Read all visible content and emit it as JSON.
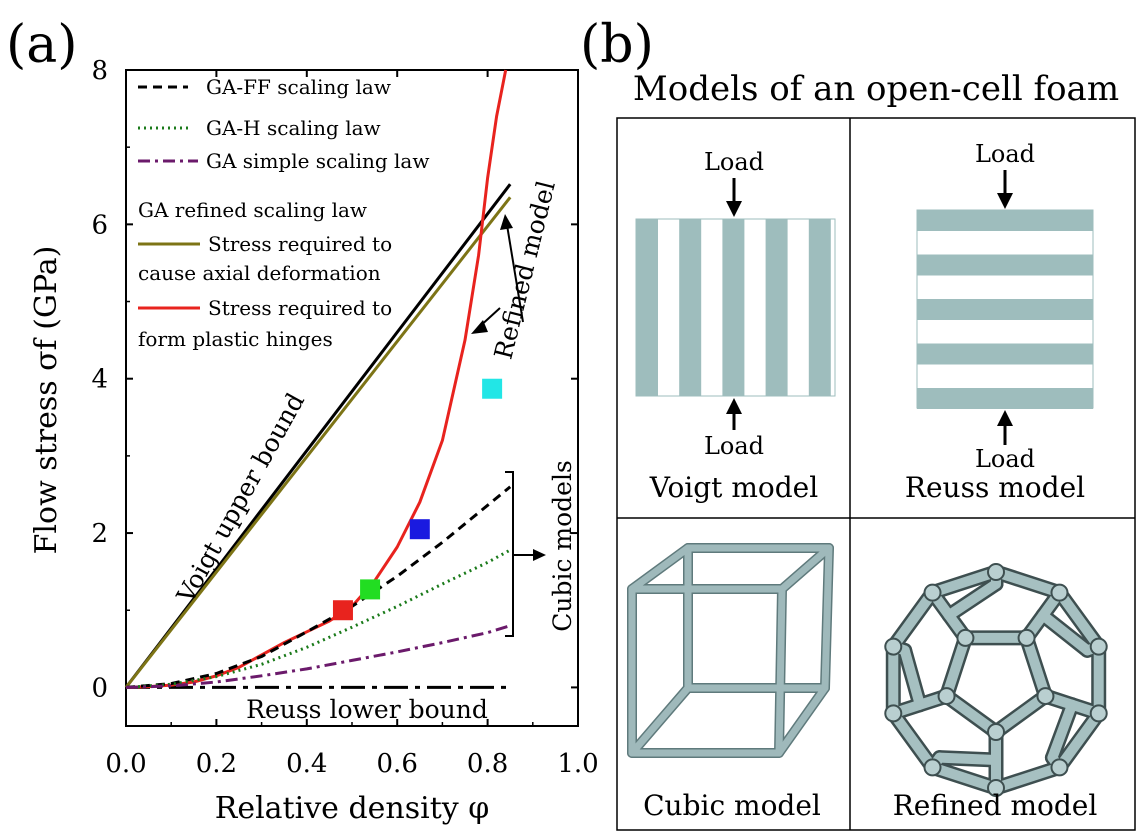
{
  "panel_a_label": "(a)",
  "panel_b_label": "(b)",
  "chart_data": {
    "type": "line",
    "xlabel": "Relative density φ",
    "ylabel": "Flow stress σf (GPa)",
    "xlim": [
      0.0,
      1.0
    ],
    "ylim": [
      -0.5,
      8.0
    ],
    "xticks": [
      0.0,
      0.2,
      0.4,
      0.6,
      0.8,
      1.0
    ],
    "xtick_labels": [
      "0.0",
      "0.2",
      "0.4",
      "0.6",
      "0.8",
      "1.0"
    ],
    "yticks": [
      0,
      2,
      4,
      6,
      8
    ],
    "ytick_labels": [
      "0",
      "2",
      "4",
      "6",
      "8"
    ],
    "grid": false,
    "legend": {
      "placement": "top-left",
      "entries": [
        {
          "label": "GA-FF scaling law",
          "color": "#000000",
          "style": "dashed"
        },
        {
          "label": "GA-H scaling law",
          "color": "#1a7a1a",
          "style": "dotted"
        },
        {
          "label": "GA simple scaling law",
          "color": "#6b1a6b",
          "style": "dashdot"
        }
      ],
      "group_title": "GA refined scaling law",
      "group_entries": [
        {
          "label_line1": "Stress required to",
          "label_line2": "cause axial deformation",
          "color": "#7d7416",
          "style": "solid"
        },
        {
          "label_line1": "Stress required to",
          "label_line2": "form plastic hinges",
          "color": "#e8231e",
          "style": "solid"
        }
      ]
    },
    "series": [
      {
        "id": "voigt",
        "color": "#000000",
        "style": "solid",
        "width": 3,
        "x": [
          0,
          0.85
        ],
        "y": [
          0,
          6.52
        ]
      },
      {
        "id": "reuss",
        "color": "#000000",
        "style": "longdashdot",
        "width": 3,
        "x": [
          0,
          0.85
        ],
        "y": [
          0,
          0
        ]
      },
      {
        "id": "axial",
        "color": "#7d7416",
        "style": "solid",
        "width": 3,
        "x": [
          0,
          0.85
        ],
        "y": [
          0,
          6.35
        ]
      },
      {
        "id": "hinges",
        "color": "#e8231e",
        "style": "solid",
        "width": 3,
        "x": [
          0,
          0.05,
          0.1,
          0.15,
          0.2,
          0.25,
          0.3,
          0.35,
          0.4,
          0.45,
          0.5,
          0.55,
          0.6,
          0.65,
          0.7,
          0.75,
          0.78,
          0.8,
          0.82,
          0.84
        ],
        "y": [
          0,
          0.01,
          0.03,
          0.07,
          0.15,
          0.26,
          0.42,
          0.58,
          0.72,
          0.86,
          1.05,
          1.38,
          1.82,
          2.4,
          3.2,
          4.5,
          5.6,
          6.6,
          7.4,
          8.0
        ]
      },
      {
        "id": "gaff",
        "color": "#000000",
        "style": "dashed",
        "width": 3,
        "x": [
          0,
          0.1,
          0.2,
          0.3,
          0.4,
          0.5,
          0.6,
          0.7,
          0.8,
          0.85
        ],
        "y": [
          0,
          0.05,
          0.18,
          0.4,
          0.72,
          1.05,
          1.44,
          1.88,
          2.36,
          2.6
        ]
      },
      {
        "id": "gah",
        "color": "#1a7a1a",
        "style": "dotted",
        "width": 3,
        "x": [
          0,
          0.1,
          0.2,
          0.3,
          0.4,
          0.5,
          0.6,
          0.7,
          0.8,
          0.85
        ],
        "y": [
          0,
          0.04,
          0.14,
          0.3,
          0.52,
          0.78,
          1.05,
          1.34,
          1.62,
          1.78
        ]
      },
      {
        "id": "simple",
        "color": "#6b1a6b",
        "style": "dashdot",
        "width": 3,
        "x": [
          0,
          0.1,
          0.2,
          0.3,
          0.4,
          0.5,
          0.6,
          0.7,
          0.8,
          0.85
        ],
        "y": [
          0,
          0.02,
          0.07,
          0.15,
          0.24,
          0.35,
          0.46,
          0.58,
          0.71,
          0.8
        ]
      }
    ],
    "markers": [
      {
        "x": 0.48,
        "y": 1.0,
        "color": "#e8231e"
      },
      {
        "x": 0.54,
        "y": 1.27,
        "color": "#22dd22"
      },
      {
        "x": 0.65,
        "y": 2.05,
        "color": "#1a1ae0"
      },
      {
        "x": 0.81,
        "y": 3.87,
        "color": "#22e6e6"
      }
    ],
    "annotations": {
      "voigt": "Voigt upper bound",
      "reuss": "Reuss lower bound",
      "cubic": "Cubic models",
      "refined": "Refined model"
    }
  },
  "panel_b": {
    "title": "Models of an open-cell foam",
    "voigt": {
      "load_top": "Load",
      "load_bottom": "Load",
      "caption": "Voigt model"
    },
    "reuss": {
      "load_top": "Load",
      "load_bottom": "Load",
      "caption": "Reuss model"
    },
    "cubic": {
      "caption": "Cubic model"
    },
    "refined": {
      "caption": "Refined model"
    },
    "layer_color": "#9ebdbd",
    "strut_color": "#8fa9ab"
  }
}
